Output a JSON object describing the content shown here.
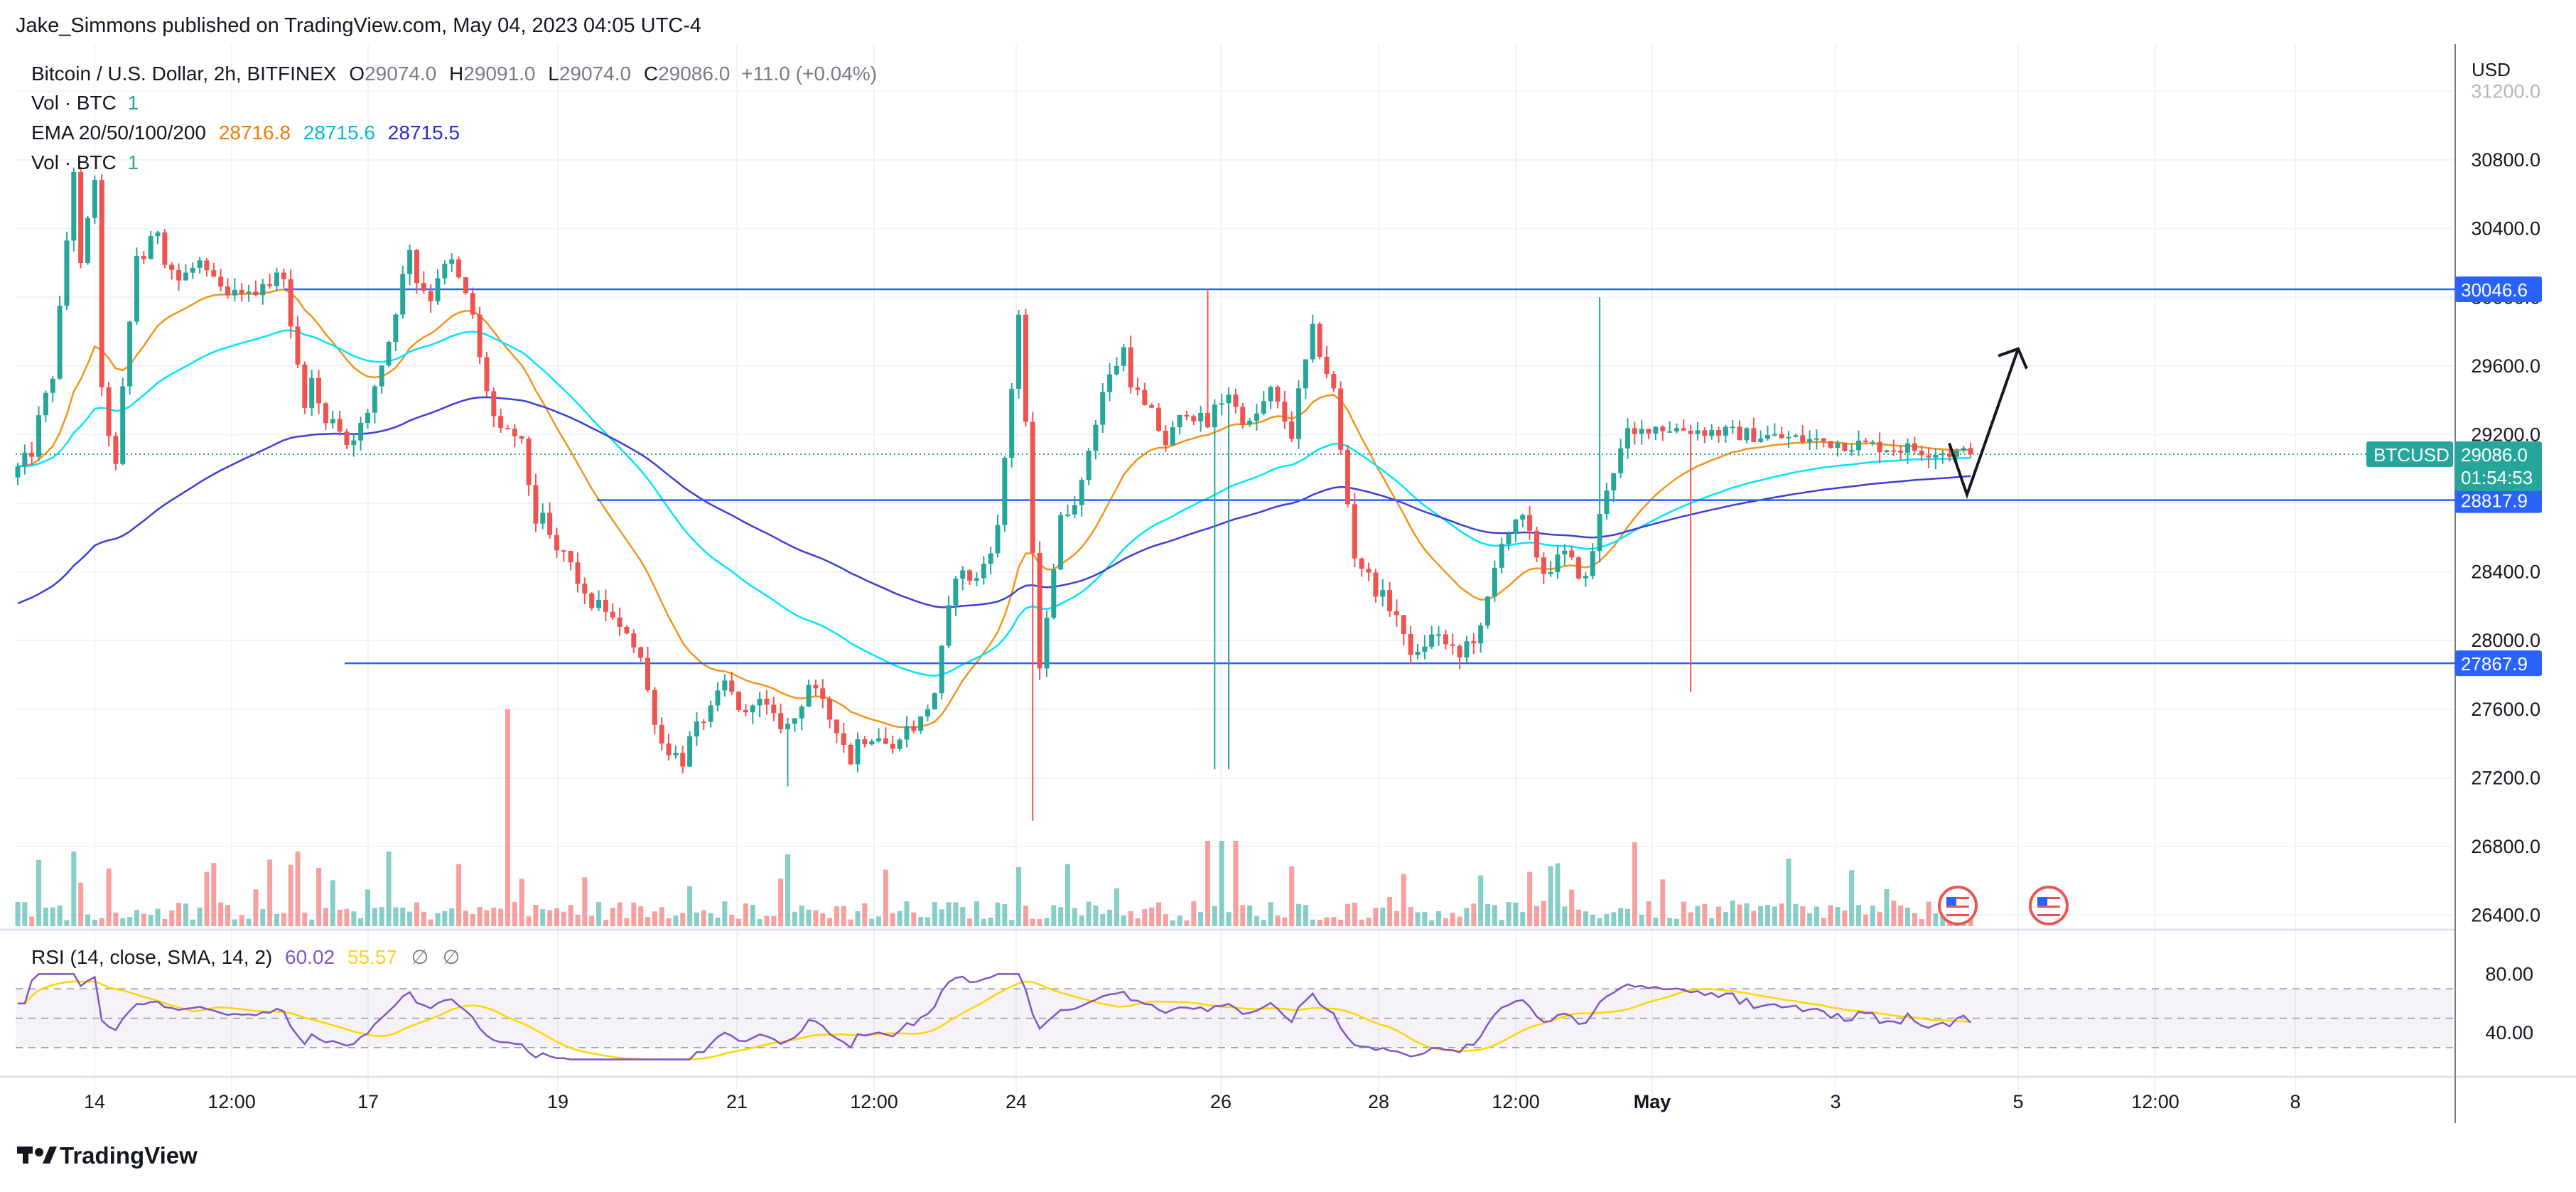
{
  "header": {
    "publisher": "Jake_Simmons published on TradingView.com, May 04, 2023 04:05 UTC-4"
  },
  "legend": {
    "symbol": "Bitcoin / U.S. Dollar, 2h, BITFINEX",
    "o_label": "O",
    "o_value": "29074.0",
    "h_label": "H",
    "h_value": "29091.0",
    "l_label": "L",
    "l_value": "29074.0",
    "c_label": "C",
    "c_value": "29086.0",
    "change": "+11.0 (+0.04%)",
    "vol_label": "Vol · BTC",
    "vol_value": "1",
    "ema_label": "EMA 20/50/100/200",
    "ema20": "28716.8",
    "ema50": "28715.6",
    "ema100": "28715.5",
    "vol2_label": "Vol · BTC",
    "vol2_value": "1"
  },
  "price_axis": {
    "currency": "USD",
    "ticks": [
      "31200.0",
      "30800.0",
      "30400.0",
      "30000.0",
      "29600.0",
      "29200.0",
      "28800.0",
      "28400.0",
      "28000.0",
      "27600.0",
      "27200.0",
      "26800.0",
      "26400.0"
    ],
    "tick_values": [
      31200,
      30800,
      30400,
      30000,
      29600,
      29200,
      28800,
      28400,
      28000,
      27600,
      27200,
      26800,
      26400
    ],
    "badges": {
      "resistance": "30046.6",
      "middle": "28817.9",
      "support": "27867.9",
      "symbol_label": "BTCUSD",
      "last_price": "29086.0",
      "countdown": "01:54:53"
    }
  },
  "time_axis": {
    "labels": [
      "14",
      "12:00",
      "17",
      "19",
      "21",
      "12:00",
      "24",
      "26",
      "28",
      "12:00",
      "May",
      "3",
      "5",
      "12:00",
      "8"
    ],
    "bold": [
      "May"
    ]
  },
  "rsi": {
    "label": "RSI (14, close, SMA, 14, 2)",
    "value": "60.02",
    "sma": "55.57",
    "extra1": "∅",
    "extra2": "∅",
    "ticks": [
      "80.00",
      "40.00"
    ],
    "tick_values": [
      80,
      40
    ],
    "band": [
      30,
      70
    ]
  },
  "footer": {
    "brand": "TradingView"
  },
  "colors": {
    "up": "#26a69a",
    "down": "#ef5350",
    "level_line": "#2962ff",
    "ema20": "#f7931a",
    "ema50": "#00e5ff",
    "ema100": "#3d3dd8",
    "rsi_line": "#7e57c2",
    "rsi_sma": "#ffd600",
    "last_price": "#26a69a"
  },
  "chart_data": {
    "type": "candlestick",
    "symbol": "BTCUSD",
    "timeframe": "2h",
    "ylim": [
      26300,
      31300
    ],
    "levels": [
      30046.6,
      28817.9,
      27867.9
    ],
    "last_price": 29086.0,
    "anchors": [
      [
        28950,
        29100
      ],
      [
        29150,
        29550
      ],
      [
        29500,
        30750
      ],
      [
        29900,
        30700
      ],
      [
        29650,
        29000
      ],
      [
        29050,
        30250
      ],
      [
        30150,
        30400
      ],
      [
        30300,
        30100
      ],
      [
        30100,
        30200
      ],
      [
        30150,
        30050
      ],
      [
        29950,
        30050
      ],
      [
        29950,
        30100
      ],
      [
        30050,
        30150
      ],
      [
        30000,
        29400
      ],
      [
        29650,
        29250
      ],
      [
        29400,
        29150
      ],
      [
        29150,
        29300
      ],
      [
        29350,
        29750
      ],
      [
        29750,
        30300
      ],
      [
        30150,
        30000
      ],
      [
        30100,
        30200
      ],
      [
        30200,
        29900
      ],
      [
        29800,
        29300
      ],
      [
        29200,
        29200
      ],
      [
        29350,
        28700
      ],
      [
        28800,
        28500
      ],
      [
        28600,
        28350
      ],
      [
        28250,
        28200
      ],
      [
        28250,
        28050
      ],
      [
        28150,
        27900
      ],
      [
        27850,
        27400
      ],
      [
        27400,
        27300
      ],
      [
        27350,
        27550
      ],
      [
        27500,
        27750
      ],
      [
        27750,
        27550
      ],
      [
        27700,
        27600
      ],
      [
        27550,
        27500
      ],
      [
        27450,
        27750
      ],
      [
        27750,
        27550
      ],
      [
        27600,
        27300
      ],
      [
        27400,
        27450
      ],
      [
        27500,
        27350
      ],
      [
        27450,
        27500
      ],
      [
        27450,
        27700
      ],
      [
        27700,
        28400
      ],
      [
        28400,
        28350
      ],
      [
        28350,
        28650
      ],
      [
        28650,
        29900
      ],
      [
        29950,
        27800
      ],
      [
        27900,
        28700
      ],
      [
        28700,
        28900
      ],
      [
        28950,
        29450
      ],
      [
        29450,
        29700
      ],
      [
        29600,
        29350
      ],
      [
        29400,
        29150
      ],
      [
        29150,
        29350
      ],
      [
        29350,
        29250
      ],
      [
        29300,
        29450
      ],
      [
        29400,
        29250
      ],
      [
        29250,
        29450
      ],
      [
        29450,
        29200
      ],
      [
        29250,
        29800
      ],
      [
        29800,
        29450
      ],
      [
        29400,
        28500
      ],
      [
        28500,
        28300
      ],
      [
        28300,
        28150
      ],
      [
        28050,
        27900
      ],
      [
        27950,
        28050
      ],
      [
        28000,
        27900
      ],
      [
        27950,
        28050
      ],
      [
        28050,
        28600
      ],
      [
        28600,
        28700
      ],
      [
        28700,
        28400
      ],
      [
        28400,
        28500
      ],
      [
        28500,
        28350
      ],
      [
        28350,
        28900
      ],
      [
        28900,
        29200
      ],
      [
        29150,
        29250
      ],
      [
        29250,
        29086
      ]
    ],
    "annotation": {
      "type": "projection_arrow",
      "path": [
        [
          29150,
          0
        ],
        [
          28850,
          5
        ],
        [
          29700,
          15
        ]
      ]
    },
    "volume_label": "Vol · BTC",
    "rsi": {
      "last": 60.02,
      "sma": 55.57,
      "ylim": [
        18,
        84
      ]
    },
    "x_tick_labels": [
      "14",
      "12:00",
      "17",
      "19",
      "21",
      "12:00",
      "24",
      "26",
      "28",
      "12:00",
      "May",
      "3",
      "5",
      "12:00",
      "8"
    ]
  }
}
